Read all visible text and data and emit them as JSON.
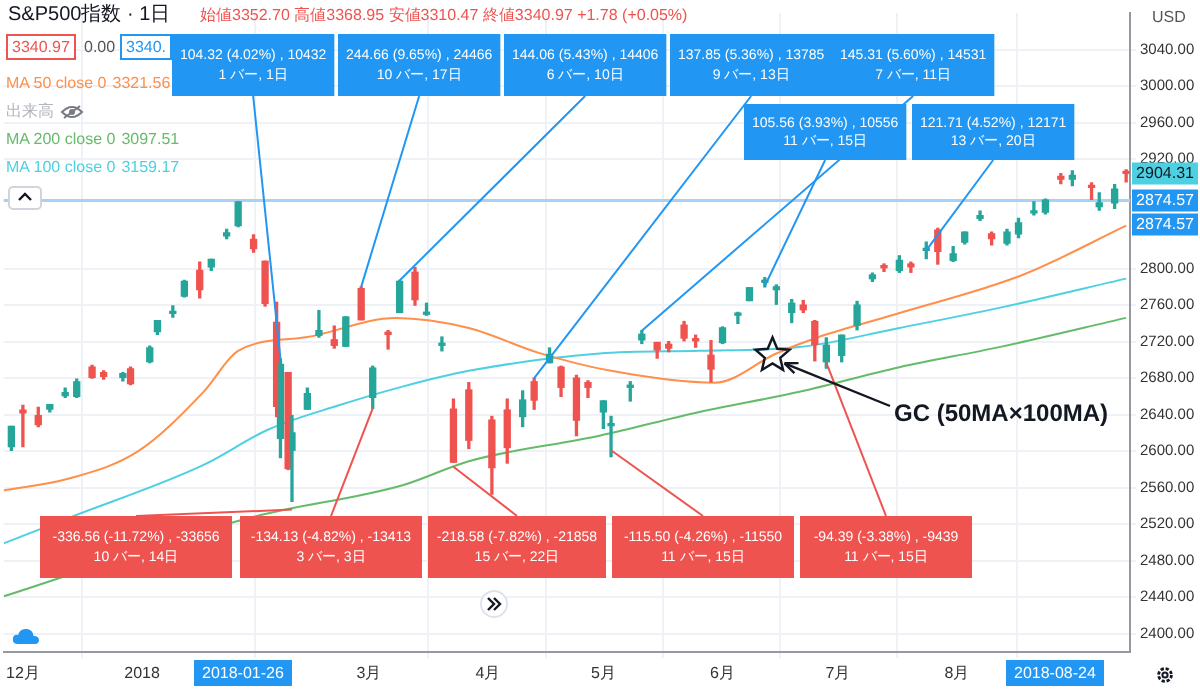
{
  "chart_data": {
    "type": "candlestick",
    "title": "S&P500指数 · 1日",
    "x": [
      "2017-11-28",
      "2017-12-01",
      "2017-12-05",
      "2017-12-08",
      "2017-12-12",
      "2017-12-15",
      "2017-12-19",
      "2017-12-22",
      "2017-12-27",
      "2017-12-29",
      "2018-01-03",
      "2018-01-05",
      "2018-01-09",
      "2018-01-12",
      "2018-01-16",
      "2018-01-19",
      "2018-01-23",
      "2018-01-26",
      "2018-01-30",
      "2018-02-02",
      "2018-02-05",
      "2018-02-06",
      "2018-02-08",
      "2018-02-09",
      "2018-02-13",
      "2018-02-16",
      "2018-02-20",
      "2018-02-23",
      "2018-02-27",
      "2018-03-02",
      "2018-03-06",
      "2018-03-09",
      "2018-03-13",
      "2018-03-16",
      "2018-03-20",
      "2018-03-23",
      "2018-03-27",
      "2018-04-02",
      "2018-04-06",
      "2018-04-10",
      "2018-04-13",
      "2018-04-17",
      "2018-04-20",
      "2018-04-24",
      "2018-04-27",
      "2018-05-01",
      "2018-05-03",
      "2018-05-08",
      "2018-05-11",
      "2018-05-15",
      "2018-05-18",
      "2018-05-22",
      "2018-05-25",
      "2018-05-29",
      "2018-06-01",
      "2018-06-05",
      "2018-06-08",
      "2018-06-12",
      "2018-06-15",
      "2018-06-19",
      "2018-06-22",
      "2018-06-25",
      "2018-06-28",
      "2018-07-02",
      "2018-07-06",
      "2018-07-10",
      "2018-07-13",
      "2018-07-17",
      "2018-07-20",
      "2018-07-24",
      "2018-07-27",
      "2018-07-31",
      "2018-08-03",
      "2018-08-07",
      "2018-08-10",
      "2018-08-14",
      "2018-08-17",
      "2018-08-21",
      "2018-08-24",
      "2018-08-28",
      "2018-08-31",
      "2018-09-05",
      "2018-09-07",
      "2018-09-11",
      "2018-09-14"
    ],
    "ohlc": [
      [
        2605,
        2627,
        2601,
        2627
      ],
      [
        2645,
        2650,
        2605,
        2642
      ],
      [
        2639,
        2648,
        2627,
        2629
      ],
      [
        2646,
        2651,
        2643,
        2651
      ],
      [
        2661,
        2669,
        2659,
        2664
      ],
      [
        2660,
        2679,
        2659,
        2676
      ],
      [
        2692,
        2694,
        2680,
        2681
      ],
      [
        2686,
        2688,
        2679,
        2682
      ],
      [
        2681,
        2686,
        2677,
        2685
      ],
      [
        2690,
        2692,
        2673,
        2674
      ],
      [
        2698,
        2715,
        2697,
        2713
      ],
      [
        2731,
        2743,
        2728,
        2743
      ],
      [
        2751,
        2759,
        2747,
        2751
      ],
      [
        2770,
        2787,
        2769,
        2786
      ],
      [
        2798,
        2807,
        2768,
        2777
      ],
      [
        2802,
        2810,
        2798,
        2810
      ],
      [
        2836,
        2843,
        2833,
        2839
      ],
      [
        2847,
        2873,
        2846,
        2873
      ],
      [
        2832,
        2837,
        2818,
        2822
      ],
      [
        2808,
        2808,
        2759,
        2762
      ],
      [
        2741,
        2763,
        2638,
        2649
      ],
      [
        2614,
        2701,
        2593,
        2695
      ],
      [
        2686,
        2686,
        2580,
        2581
      ],
      [
        2601,
        2639,
        2545,
        2620
      ],
      [
        2646,
        2669,
        2646,
        2663
      ],
      [
        2727,
        2754,
        2725,
        2732
      ],
      [
        2722,
        2737,
        2713,
        2716
      ],
      [
        2715,
        2747,
        2715,
        2747
      ],
      [
        2778,
        2780,
        2744,
        2744
      ],
      [
        2659,
        2693,
        2647,
        2691
      ],
      [
        2730,
        2732,
        2712,
        2728
      ],
      [
        2752,
        2787,
        2752,
        2786
      ],
      [
        2796,
        2801,
        2760,
        2766
      ],
      [
        2750,
        2762,
        2749,
        2752
      ],
      [
        2716,
        2725,
        2710,
        2717
      ],
      [
        2646,
        2657,
        2588,
        2588
      ],
      [
        2667,
        2675,
        2603,
        2612
      ],
      [
        2634,
        2638,
        2553,
        2582
      ],
      [
        2645,
        2657,
        2587,
        2604
      ],
      [
        2638,
        2666,
        2627,
        2656
      ],
      [
        2676,
        2680,
        2646,
        2656
      ],
      [
        2697,
        2713,
        2697,
        2706
      ],
      [
        2692,
        2693,
        2660,
        2670
      ],
      [
        2680,
        2683,
        2617,
        2634
      ],
      [
        2675,
        2677,
        2659,
        2670
      ],
      [
        2643,
        2655,
        2625,
        2655
      ],
      [
        2628,
        2638,
        2594,
        2630
      ],
      [
        2670,
        2676,
        2655,
        2671
      ],
      [
        2722,
        2732,
        2718,
        2728
      ],
      [
        2719,
        2719,
        2702,
        2711
      ],
      [
        2717,
        2720,
        2709,
        2713
      ],
      [
        2738,
        2742,
        2721,
        2724
      ],
      [
        2723,
        2727,
        2714,
        2721
      ],
      [
        2705,
        2721,
        2676,
        2690
      ],
      [
        2719,
        2736,
        2718,
        2735
      ],
      [
        2749,
        2752,
        2740,
        2749
      ],
      [
        2765,
        2779,
        2765,
        2779
      ],
      [
        2785,
        2790,
        2780,
        2787
      ],
      [
        2777,
        2782,
        2761,
        2780
      ],
      [
        2752,
        2766,
        2741,
        2762
      ],
      [
        2760,
        2765,
        2752,
        2755
      ],
      [
        2742,
        2743,
        2699,
        2717
      ],
      [
        2698,
        2724,
        2691,
        2716
      ],
      [
        2705,
        2727,
        2698,
        2727
      ],
      [
        2738,
        2764,
        2733,
        2760
      ],
      [
        2789,
        2795,
        2786,
        2793
      ],
      [
        2803,
        2805,
        2797,
        2801
      ],
      [
        2798,
        2814,
        2796,
        2809
      ],
      [
        2805,
        2807,
        2796,
        2802
      ],
      [
        2820,
        2829,
        2811,
        2820
      ],
      [
        2842,
        2844,
        2805,
        2819
      ],
      [
        2809,
        2824,
        2808,
        2816
      ],
      [
        2829,
        2840,
        2827,
        2840
      ],
      [
        2855,
        2863,
        2853,
        2858
      ],
      [
        2838,
        2840,
        2826,
        2833
      ],
      [
        2828,
        2843,
        2826,
        2840
      ],
      [
        2838,
        2855,
        2834,
        2850
      ],
      [
        2861,
        2873,
        2859,
        2863
      ],
      [
        2862,
        2876,
        2860,
        2875
      ],
      [
        2901,
        2904,
        2893,
        2898
      ],
      [
        2898,
        2907,
        2891,
        2902
      ],
      [
        2891,
        2894,
        2876,
        2889
      ],
      [
        2868,
        2883,
        2864,
        2872
      ],
      [
        2872,
        2892,
        2866,
        2887
      ],
      [
        2906,
        2908,
        2895,
        2904.31
      ]
    ],
    "series": [
      {
        "name": "MA 50 close 0",
        "type": "line",
        "color": "#ff8f4a",
        "x": [
          "2017-11-26",
          "2017-12-13",
          "2017-12-31",
          "2018-01-17",
          "2018-01-26",
          "2018-02-13",
          "2018-03-08",
          "2018-03-27",
          "2018-04-14",
          "2018-05-03",
          "2018-05-30",
          "2018-06-15",
          "2018-06-26",
          "2018-07-16",
          "2018-08-18",
          "2018-09-14"
        ],
        "values": [
          2557,
          2570,
          2600,
          2665,
          2710,
          2725,
          2746,
          2735,
          2708,
          2688,
          2675,
          2707,
          2725,
          2750,
          2793,
          2847
        ]
      },
      {
        "name": "MA 200 close 0",
        "type": "line",
        "color": "#66bb6a",
        "x": [
          "2017-11-26",
          "2017-12-31",
          "2018-01-29",
          "2018-03-10",
          "2018-03-27",
          "2018-04-30",
          "2018-05-26",
          "2018-06-21",
          "2018-07-17",
          "2018-08-12",
          "2018-09-14"
        ],
        "values": [
          2441,
          null,
          2527,
          2563,
          2589,
          2617,
          2643,
          2665,
          2692,
          2714,
          2746
        ]
      },
      {
        "name": "MA 100 close 0",
        "type": "line",
        "color": "#4dd0e1",
        "x": [
          "2017-11-26",
          "2017-12-13",
          "2018-01-17",
          "2018-02-03",
          "2018-02-21",
          "2018-03-10",
          "2018-03-27",
          "2018-04-30",
          "2018-05-26",
          "2018-06-21",
          "2018-07-17",
          "2018-08-12",
          "2018-09-14"
        ],
        "values": [
          2499,
          2527,
          2585,
          2624,
          2650,
          2671,
          2688,
          2707,
          2710,
          2714,
          2735,
          2757,
          2789
        ]
      }
    ],
    "xlim": [
      "2017-11-26",
      "2018-09-15"
    ],
    "xticks": [
      {
        "value": "2017-12-01",
        "label": "12月"
      },
      {
        "value": "2018-01-01",
        "label": "2018"
      },
      {
        "value": "2018-03-01",
        "label": "3月"
      },
      {
        "value": "2018-04-01",
        "label": "4月"
      },
      {
        "value": "2018-05-01",
        "label": "5月"
      },
      {
        "value": "2018-06-01",
        "label": "6月"
      },
      {
        "value": "2018-07-01",
        "label": "7月"
      },
      {
        "value": "2018-08-01",
        "label": "8月"
      }
    ],
    "ylim": [
      2380,
      3080
    ],
    "yticks": [
      {
        "value": 2400,
        "label": "2400.00"
      },
      {
        "value": 2440,
        "label": "2440.00"
      },
      {
        "value": 2480,
        "label": "2480.00"
      },
      {
        "value": 2520,
        "label": "2520.00"
      },
      {
        "value": 2560,
        "label": "2560.00"
      },
      {
        "value": 2600,
        "label": "2600.00"
      },
      {
        "value": 2640,
        "label": "2640.00"
      },
      {
        "value": 2680,
        "label": "2680.00"
      },
      {
        "value": 2720,
        "label": "2720.00"
      },
      {
        "value": 2760,
        "label": "2760.00"
      },
      {
        "value": 2800,
        "label": "2800.00"
      },
      {
        "value": 2920,
        "label": "2920.00"
      },
      {
        "value": 2960,
        "label": "2960.00"
      },
      {
        "value": 3000,
        "label": "3000.00"
      },
      {
        "value": 3040,
        "label": "3040.00"
      }
    ],
    "grid": true,
    "legend": "top left",
    "ref_lines": [
      {
        "axis": "y",
        "value": 2874.57,
        "label": "2874.57",
        "color": "#a8d1f5"
      }
    ],
    "annotations": [
      "始値3352.70 高値3368.95 安値3310.47 終値3340.97 +1.78 (+0.05%)",
      "3340.97",
      "0.00",
      "3340.",
      "3321.56",
      "出来高",
      "3097.51",
      "3159.17",
      "USD",
      "2018-01-26",
      "2018-08-24",
      {
        "text": "104.32 (4.02%) , 10432\n1 バー, 1日",
        "x": "2018-02-06",
        "y": 2701
      },
      {
        "text": "244.66 (9.65%) , 24466\n10 バー, 17日",
        "x": "2018-02-27",
        "y": 2780
      },
      {
        "text": "144.06 (5.43%) , 14406\n6 バー, 10日",
        "x": "2018-03-09",
        "y": 2787
      },
      {
        "text": "137.85 (5.36%) , 13785\n9 バー, 13日",
        "x": "2018-04-13",
        "y": 2680
      },
      {
        "text": "145.31 (5.60%) , 14531\n7 バー, 11日",
        "x": "2018-05-11",
        "y": 2732
      },
      {
        "text": "105.56 (3.93%) , 10556\n11 バー, 15日",
        "x": "2018-06-12",
        "y": 2781
      },
      {
        "text": "121.71 (4.52%) , 12171\n13 バー, 20日",
        "x": "2018-07-24",
        "y": 2820
      },
      {
        "text": "-336.56 (-11.72%) , -33656\n10 バー, 14日",
        "x": "2018-02-09",
        "y": 2536
      },
      {
        "text": "-134.13 (-4.82%) , -13413\n3 バー, 3日",
        "x": "2018-03-02",
        "y": 2647
      },
      {
        "text": "-218.58 (-7.82%) , -21858\n15 バー, 22日",
        "x": "2018-03-23",
        "y": 2583
      },
      {
        "text": "-115.50 (-4.26%) , -11550\n11 バー, 15日",
        "x": "2018-05-03",
        "y": 2601
      },
      {
        "text": "-94.39 (-3.38%) , -9439\n11 バー, 15日",
        "x": "2018-06-28",
        "y": 2697
      },
      {
        "text": "GC (50MA×100MA)",
        "x": "2018-06-14",
        "y": 2705
      },
      {
        "text": "2904.31",
        "y": 2904.31
      },
      {
        "text": "2874.57",
        "y": 2874.57
      }
    ]
  }
}
